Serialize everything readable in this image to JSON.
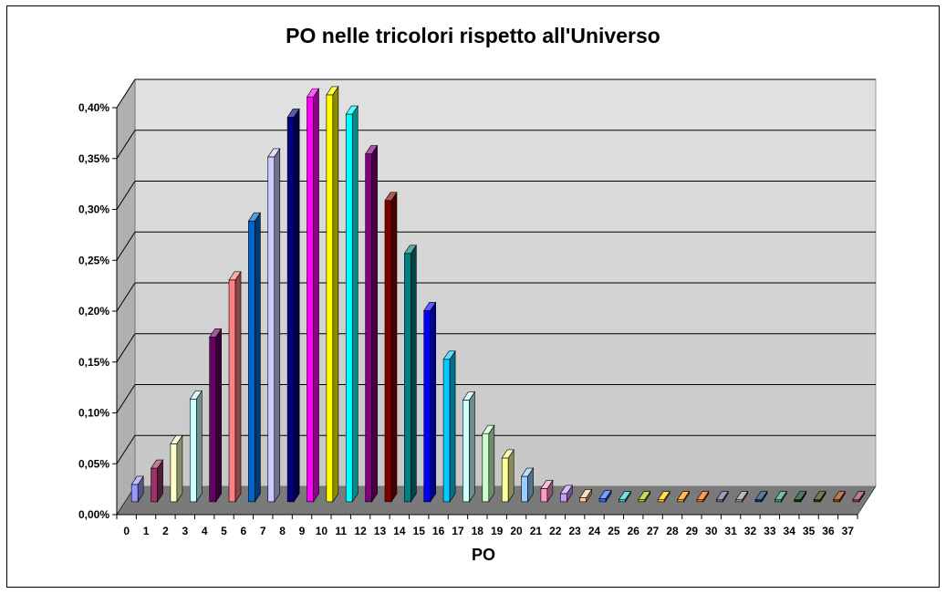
{
  "chart_data": {
    "type": "bar",
    "title": "PO nelle tricolori rispetto all'Universo",
    "xlabel": "PO",
    "ylabel": "",
    "ylim": [
      0,
      0.4
    ],
    "y_ticks": [
      "0,00%",
      "0,05%",
      "0,10%",
      "0,15%",
      "0,20%",
      "0,25%",
      "0,30%",
      "0,35%",
      "0,40%"
    ],
    "grid": true,
    "legend": "none",
    "categories": [
      "0",
      "1",
      "2",
      "3",
      "4",
      "5",
      "6",
      "7",
      "8",
      "9",
      "10",
      "11",
      "12",
      "13",
      "14",
      "15",
      "16",
      "17",
      "18",
      "19",
      "20",
      "21",
      "22",
      "23",
      "24",
      "25",
      "26",
      "27",
      "28",
      "29",
      "30",
      "31",
      "32",
      "33",
      "34",
      "35",
      "36",
      "37"
    ],
    "values": [
      0.017,
      0.033,
      0.057,
      0.101,
      0.162,
      0.218,
      0.276,
      0.339,
      0.378,
      0.398,
      0.4,
      0.381,
      0.342,
      0.296,
      0.244,
      0.188,
      0.14,
      0.1,
      0.067,
      0.043,
      0.025,
      0.013,
      0.008,
      0.004,
      0.003,
      0.002,
      0.002,
      0.002,
      0.002,
      0.002,
      0.002,
      0.002,
      0.002,
      0.002,
      0.002,
      0.002,
      0.002,
      0.002
    ],
    "unit": "%",
    "colors": [
      "#9999ff",
      "#993366",
      "#ffffcc",
      "#ccffff",
      "#660066",
      "#ff8080",
      "#0066cc",
      "#ccccff",
      "#000080",
      "#ff00ff",
      "#ffff00",
      "#00ffff",
      "#800080",
      "#800000",
      "#008080",
      "#0000ff",
      "#00ccff",
      "#ccffff",
      "#ccffcc",
      "#ffff99",
      "#99ccff",
      "#ff99cc",
      "#cc99ff",
      "#ffcc99",
      "#3366ff",
      "#33cccc",
      "#99cc00",
      "#ffcc00",
      "#ff9900",
      "#ff6600",
      "#666699",
      "#969696",
      "#003366",
      "#339966",
      "#003300",
      "#333300",
      "#993300",
      "#993366"
    ]
  }
}
